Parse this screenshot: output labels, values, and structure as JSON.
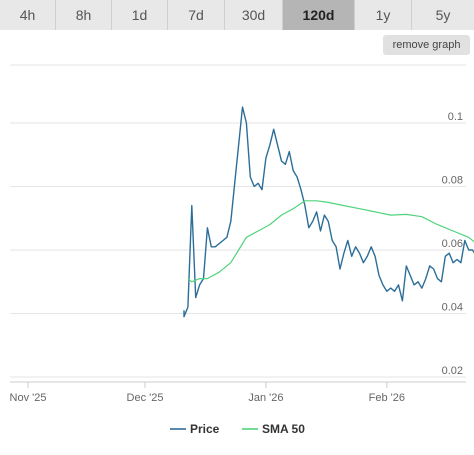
{
  "tabs": [
    {
      "label": "4h"
    },
    {
      "label": "8h"
    },
    {
      "label": "1d"
    },
    {
      "label": "7d"
    },
    {
      "label": "30d"
    },
    {
      "label": "120d",
      "active": true
    },
    {
      "label": "1y"
    },
    {
      "label": "5y"
    }
  ],
  "remove_graph_label": "remove graph",
  "colors": {
    "price": "#2c6e99",
    "sma": "#4fd47c",
    "grid": "#e6e6e6"
  },
  "chart_data": {
    "type": "line",
    "x_ticks": [
      "Nov '25",
      "Dec '25",
      "Jan '26",
      "Feb '26"
    ],
    "y_ticks": [
      0.02,
      0.04,
      0.06,
      0.08,
      0.1
    ],
    "ylim": [
      0.02,
      0.1
    ],
    "grid": true,
    "legend_position": "bottom",
    "series": [
      {
        "name": "Price",
        "points": [
          [
            "2025-12-11",
            0.041
          ],
          [
            "2025-12-11",
            0.039
          ],
          [
            "2025-12-12",
            0.042
          ],
          [
            "2025-12-13",
            0.074
          ],
          [
            "2025-12-14",
            0.045
          ],
          [
            "2025-12-15",
            0.049
          ],
          [
            "2025-12-16",
            0.051
          ],
          [
            "2025-12-17",
            0.067
          ],
          [
            "2025-12-18",
            0.061
          ],
          [
            "2025-12-19",
            0.061
          ],
          [
            "2025-12-20",
            0.062
          ],
          [
            "2025-12-21",
            0.063
          ],
          [
            "2025-12-22",
            0.064
          ],
          [
            "2025-12-23",
            0.069
          ],
          [
            "2025-12-24",
            0.081
          ],
          [
            "2025-12-25",
            0.093
          ],
          [
            "2025-12-26",
            0.105
          ],
          [
            "2025-12-27",
            0.1
          ],
          [
            "2025-12-28",
            0.083
          ],
          [
            "2025-12-29",
            0.08
          ],
          [
            "2025-12-30",
            0.081
          ],
          [
            "2025-12-31",
            0.079
          ],
          [
            "2026-01-01",
            0.089
          ],
          [
            "2026-01-02",
            0.093
          ],
          [
            "2026-01-03",
            0.098
          ],
          [
            "2026-01-04",
            0.093
          ],
          [
            "2026-01-05",
            0.088
          ],
          [
            "2026-01-06",
            0.087
          ],
          [
            "2026-01-07",
            0.091
          ],
          [
            "2026-01-08",
            0.085
          ],
          [
            "2026-01-09",
            0.083
          ],
          [
            "2026-01-10",
            0.079
          ],
          [
            "2026-01-11",
            0.074
          ],
          [
            "2026-01-12",
            0.067
          ],
          [
            "2026-01-13",
            0.069
          ],
          [
            "2026-01-14",
            0.072
          ],
          [
            "2026-01-15",
            0.066
          ],
          [
            "2026-01-16",
            0.071
          ],
          [
            "2026-01-17",
            0.069
          ],
          [
            "2026-01-18",
            0.063
          ],
          [
            "2026-01-19",
            0.061
          ],
          [
            "2026-01-20",
            0.054
          ],
          [
            "2026-01-21",
            0.059
          ],
          [
            "2026-01-22",
            0.063
          ],
          [
            "2026-01-23",
            0.058
          ],
          [
            "2026-01-24",
            0.061
          ],
          [
            "2026-01-25",
            0.059
          ],
          [
            "2026-01-26",
            0.056
          ],
          [
            "2026-01-27",
            0.058
          ],
          [
            "2026-01-28",
            0.061
          ],
          [
            "2026-01-29",
            0.058
          ],
          [
            "2026-01-30",
            0.052
          ],
          [
            "2026-01-31",
            0.049
          ],
          [
            "2026-02-01",
            0.047
          ],
          [
            "2026-02-02",
            0.048
          ],
          [
            "2026-02-03",
            0.047
          ],
          [
            "2026-02-04",
            0.049
          ],
          [
            "2026-02-05",
            0.044
          ],
          [
            "2026-02-06",
            0.055
          ],
          [
            "2026-02-07",
            0.052
          ],
          [
            "2026-02-08",
            0.049
          ],
          [
            "2026-02-09",
            0.05
          ],
          [
            "2026-02-10",
            0.048
          ],
          [
            "2026-02-11",
            0.051
          ],
          [
            "2026-02-12",
            0.055
          ],
          [
            "2026-02-13",
            0.054
          ],
          [
            "2026-02-14",
            0.051
          ],
          [
            "2026-02-15",
            0.05
          ],
          [
            "2026-02-16",
            0.058
          ],
          [
            "2026-02-17",
            0.059
          ],
          [
            "2026-02-18",
            0.056
          ],
          [
            "2026-02-19",
            0.057
          ],
          [
            "2026-02-20",
            0.056
          ],
          [
            "2026-02-21",
            0.063
          ],
          [
            "2026-02-22",
            0.06
          ],
          [
            "2026-02-23",
            0.06
          ],
          [
            "2026-02-24",
            0.058
          ],
          [
            "2026-02-25",
            0.059
          ],
          [
            "2026-02-26",
            0.058
          ],
          [
            "2026-02-27",
            0.057
          ]
        ]
      },
      {
        "name": "SMA 50",
        "points": [
          [
            "2025-12-12",
            0.051
          ],
          [
            "2025-12-13",
            0.05
          ],
          [
            "2025-12-15",
            0.051
          ],
          [
            "2025-12-17",
            0.051
          ],
          [
            "2025-12-20",
            0.053
          ],
          [
            "2025-12-23",
            0.056
          ],
          [
            "2025-12-25",
            0.06
          ],
          [
            "2025-12-27",
            0.064
          ],
          [
            "2025-12-30",
            0.066
          ],
          [
            "2026-01-02",
            0.068
          ],
          [
            "2026-01-05",
            0.071
          ],
          [
            "2026-01-08",
            0.073
          ],
          [
            "2026-01-11",
            0.0755
          ],
          [
            "2026-01-14",
            0.0755
          ],
          [
            "2026-01-17",
            0.075
          ],
          [
            "2026-01-21",
            0.074
          ],
          [
            "2026-01-25",
            0.073
          ],
          [
            "2026-01-29",
            0.072
          ],
          [
            "2026-02-02",
            0.071
          ],
          [
            "2026-02-06",
            0.0712
          ],
          [
            "2026-02-10",
            0.0705
          ],
          [
            "2026-02-14",
            0.068
          ],
          [
            "2026-02-18",
            0.066
          ],
          [
            "2026-02-22",
            0.064
          ],
          [
            "2026-02-27",
            0.059
          ]
        ]
      }
    ]
  }
}
